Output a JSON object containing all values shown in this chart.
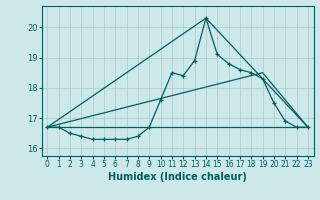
{
  "xlabel": "Humidex (Indice chaleur)",
  "background_color": "#cce8e8",
  "grid_color": "#aacccc",
  "line_color": "#006060",
  "xlim": [
    -0.5,
    23.5
  ],
  "ylim": [
    15.75,
    20.7
  ],
  "yticks": [
    16,
    17,
    18,
    19,
    20
  ],
  "xticks": [
    0,
    1,
    2,
    3,
    4,
    5,
    6,
    7,
    8,
    9,
    10,
    11,
    12,
    13,
    14,
    15,
    16,
    17,
    18,
    19,
    20,
    21,
    22,
    23
  ],
  "line1_x": [
    0,
    1,
    2,
    3,
    4,
    5,
    6,
    7,
    8,
    9,
    10,
    11,
    12,
    13,
    14,
    15,
    16,
    17,
    18,
    19,
    20,
    21,
    22,
    23
  ],
  "line1_y": [
    16.7,
    16.7,
    16.5,
    16.4,
    16.3,
    16.3,
    16.3,
    16.3,
    16.4,
    16.7,
    17.6,
    18.5,
    18.4,
    18.9,
    20.3,
    19.1,
    18.8,
    18.6,
    18.5,
    18.3,
    17.5,
    16.9,
    16.7,
    16.7
  ],
  "line2_x": [
    0,
    14,
    23
  ],
  "line2_y": [
    16.7,
    20.3,
    16.7
  ],
  "line3_x": [
    0,
    19,
    23
  ],
  "line3_y": [
    16.7,
    18.5,
    16.7
  ],
  "line4_x": [
    0,
    23
  ],
  "line4_y": [
    16.7,
    16.7
  ]
}
